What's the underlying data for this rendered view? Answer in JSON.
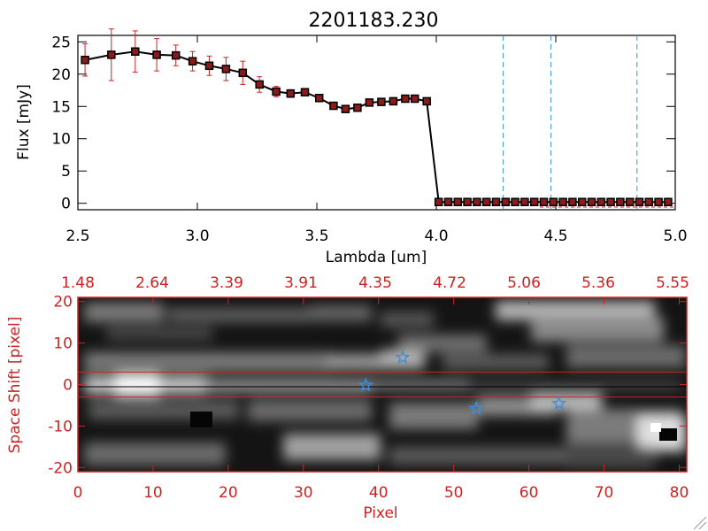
{
  "title": "2201183.230",
  "colors": {
    "axis": "#000000",
    "spectrum_line": "#000000",
    "marker_fill": "#8b1a1a",
    "error_bar": "#cc2222",
    "dashed_line": "#3a8fe0",
    "image_axis": "#cc2222",
    "star": "#3a8fe0"
  },
  "chart_data": [
    {
      "type": "line",
      "title": "2201183.230",
      "xlabel": "Lambda [um]",
      "ylabel": "Flux [mJy]",
      "xlim": [
        2.5,
        5.0
      ],
      "ylim": [
        -1,
        26
      ],
      "x_ticks": [
        "2.5",
        "3.0",
        "3.5",
        "4.0",
        "4.5",
        "5.0"
      ],
      "y_ticks": [
        "0",
        "5",
        "10",
        "15",
        "20",
        "25"
      ],
      "series": [
        {
          "name": "flux",
          "x": [
            2.53,
            2.64,
            2.74,
            2.83,
            2.91,
            2.98,
            3.05,
            3.12,
            3.19,
            3.26,
            3.33,
            3.39,
            3.45,
            3.51,
            3.57,
            3.62,
            3.67,
            3.72,
            3.77,
            3.82,
            3.87,
            3.91,
            3.96,
            4.01,
            4.05,
            4.09,
            4.13,
            4.17,
            4.21,
            4.25,
            4.29,
            4.33,
            4.37,
            4.41,
            4.45,
            4.49,
            4.53,
            4.57,
            4.61,
            4.65,
            4.69,
            4.73,
            4.77,
            4.81,
            4.85,
            4.89,
            4.93,
            4.97
          ],
          "y": [
            22.2,
            23.0,
            23.5,
            23.0,
            22.9,
            22.0,
            21.3,
            20.8,
            20.2,
            18.4,
            17.3,
            17.0,
            17.2,
            16.3,
            15.1,
            14.6,
            14.8,
            15.6,
            15.7,
            15.8,
            16.2,
            16.2,
            15.8,
            0.2,
            0.2,
            0.2,
            0.2,
            0.2,
            0.2,
            0.2,
            0.2,
            0.2,
            0.2,
            0.2,
            0.2,
            0.2,
            0.2,
            0.2,
            0.2,
            0.2,
            0.2,
            0.2,
            0.2,
            0.2,
            0.2,
            0.2,
            0.2,
            0.2
          ],
          "yerr": [
            2.5,
            4.0,
            3.2,
            2.5,
            1.6,
            1.5,
            1.5,
            1.8,
            1.8,
            1.2,
            0.8,
            0.6,
            0.5,
            0.5,
            0.4,
            0.4,
            0.4,
            0.4,
            0.3,
            0.3,
            0.3,
            0.3,
            0.3,
            0,
            0,
            0,
            0,
            0,
            0,
            0,
            0,
            0,
            0,
            0,
            0,
            0,
            0,
            0,
            0,
            0,
            0,
            0,
            0,
            0,
            0,
            0,
            0,
            0
          ]
        }
      ],
      "vlines": [
        4.28,
        4.48,
        4.84
      ],
      "grid": false
    },
    {
      "type": "heatmap",
      "xlabel": "Pixel",
      "ylabel": "Space Shift [pixel]",
      "xlim": [
        0,
        81
      ],
      "ylim": [
        -21,
        21
      ],
      "x_ticks": [
        "0",
        "10",
        "20",
        "30",
        "40",
        "50",
        "60",
        "70",
        "80"
      ],
      "y_ticks": [
        "-20",
        "-10",
        "0",
        "10",
        "20"
      ],
      "top_ticks": [
        "1.48",
        "2.64",
        "3.39",
        "3.91",
        "4.35",
        "4.72",
        "5.06",
        "5.36",
        "5.55"
      ],
      "extraction_window": [
        -3,
        3
      ],
      "stars": [
        {
          "x": 43.2,
          "y": 6.5
        },
        {
          "x": 38.3,
          "y": -0.2
        },
        {
          "x": 53.0,
          "y": -5.8
        },
        {
          "x": 64.0,
          "y": -4.6
        }
      ]
    }
  ]
}
